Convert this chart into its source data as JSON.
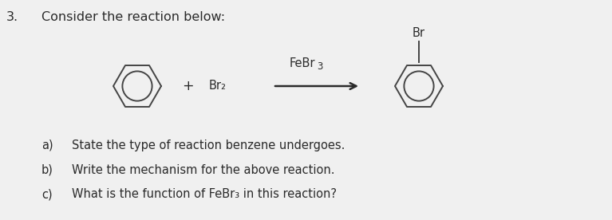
{
  "title_num": "3.",
  "title_text": "Consider the reaction below:",
  "question_a": "a)",
  "question_b": "b)",
  "question_c": "c)",
  "text_a": "State the type of reaction benzene undergoes.",
  "text_b": "Write the mechanism for the above reaction.",
  "text_c": "What is the function of FeBr₃ in this reaction?",
  "febr3_label": "FeBr 3",
  "br2_label": "Br₂",
  "br_label": "Br",
  "plus_label": "+",
  "bg_color": "#f0f0f0",
  "text_color": "#2a2a2a",
  "ring_color": "#444444",
  "font_size": 10.5,
  "title_font_size": 11.5,
  "q_font_size": 10.5
}
